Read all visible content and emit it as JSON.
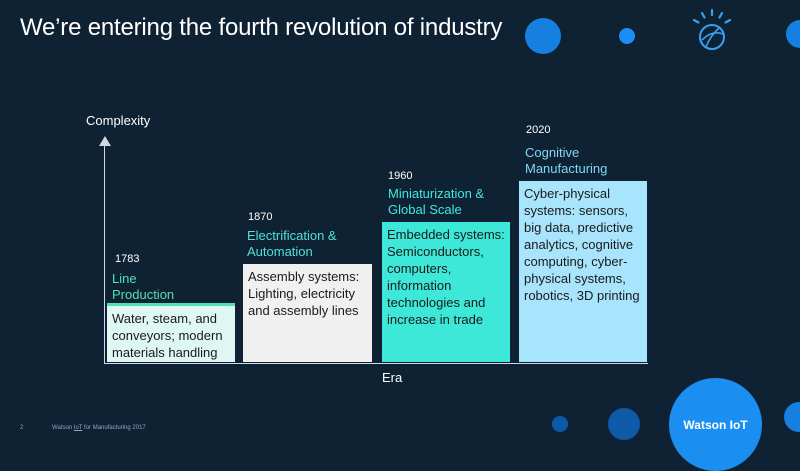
{
  "header": {
    "title": "We’re entering the fourth revolution of industry"
  },
  "chart": {
    "y_label": "Complexity",
    "x_label": "Era",
    "eras": [
      {
        "year": "1783",
        "title": "Line Production",
        "text": "Water, steam, and conveyors; modern materials handling",
        "title_color": "#4fe0b5",
        "box_color": "#dff7f2"
      },
      {
        "year": "1870",
        "title": "Electrification & Automation",
        "text": "Assembly systems: Lighting, electricity and assembly lines",
        "title_color": "#4fe0d6",
        "box_color": "#f0f0f0"
      },
      {
        "year": "1960",
        "title": "Miniaturization & Global Scale",
        "text": "Embedded systems: Semiconductors, computers, information technologies and increase in trade",
        "title_color": "#3fe8e0",
        "box_color": "#3ee8d8"
      },
      {
        "year": "2020",
        "title": "Cognitive Manufacturing",
        "text": "Cyber-physical systems: sensors, big data, predictive analytics, cognitive computing, cyber-physical systems, robotics, 3D printing",
        "title_color": "#7fd8f5",
        "box_color": "#a8e4fb"
      }
    ]
  },
  "footer": {
    "page": "2",
    "brand": "Watson",
    "iot": "IoT",
    "suffix": "for Manufacturing  2017"
  },
  "badge": {
    "label": "Watson IoT"
  },
  "colors": {
    "background": "#0f2233",
    "accent_blue": "#1b8ef2"
  }
}
